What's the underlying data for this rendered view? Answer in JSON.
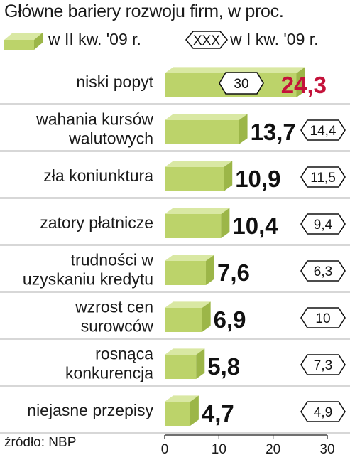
{
  "title": "Główne bariery rozwoju firm, w proc.",
  "legend": {
    "current_label": "w II kw. '09 r.",
    "previous_marker": "XXX",
    "previous_label": "w I kw. '09 r."
  },
  "source": "źródło: NBP",
  "colors": {
    "bar_front": "#bcd36a",
    "bar_top": "#d9e8a3",
    "bar_side": "#9cb648",
    "highlight_value": "#c4123a",
    "row_band": "#d7d7d7"
  },
  "chart_data": {
    "type": "bar",
    "orientation": "horizontal",
    "title": "Główne bariery rozwoju firm, w proc.",
    "categories": [
      [
        "niski popyt"
      ],
      [
        "wahania kursów",
        "walutowych"
      ],
      [
        "zła koniunktura"
      ],
      [
        "zatory płatnicze"
      ],
      [
        "trudności w",
        "uzyskaniu kredytu"
      ],
      [
        "wzrost cen",
        "surowców"
      ],
      [
        "rosnąca",
        "konkurencja"
      ],
      [
        "niejasne przepisy"
      ]
    ],
    "series": [
      {
        "name": "w II kw. '09 r.",
        "values": [
          24.3,
          13.7,
          10.9,
          10.4,
          7.6,
          6.9,
          5.8,
          4.7
        ],
        "labels": [
          "24,3",
          "13,7",
          "10,9",
          "10,4",
          "7,6",
          "6,9",
          "5,8",
          "4,7"
        ]
      },
      {
        "name": "w I kw. '09 r.",
        "values": [
          30,
          14.4,
          11.5,
          9.4,
          6.3,
          10,
          7.3,
          4.9
        ],
        "labels": [
          "30",
          "14,4",
          "11,5",
          "9,4",
          "6,3",
          "10",
          "7,3",
          "4,9"
        ]
      }
    ],
    "x_ticks": [
      "0",
      "10",
      "20",
      "30"
    ],
    "xlim": [
      0,
      30
    ],
    "xlabel": "",
    "ylabel": ""
  }
}
